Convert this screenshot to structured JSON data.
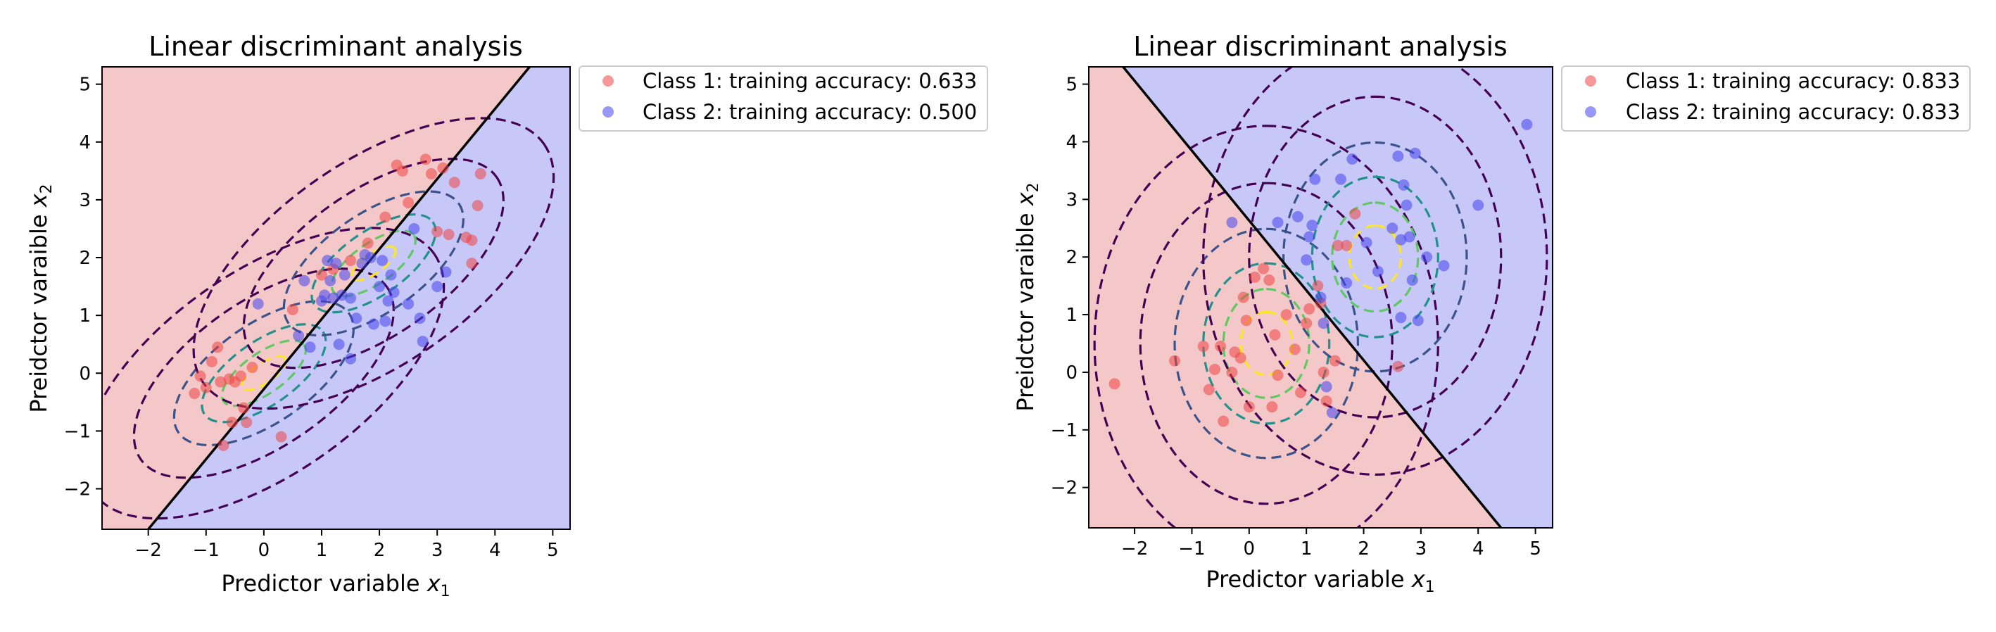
{
  "figure": {
    "background": "#ffffff"
  },
  "colors": {
    "region_class1": "#f4c8c8",
    "region_class2": "#c8c8f8",
    "point_class1": "#ee4444",
    "point_class2": "#4444ee",
    "boundary": "#000000",
    "contour_levels": [
      "#440154",
      "#3b528b",
      "#21918c",
      "#5ec962",
      "#fde725"
    ]
  },
  "chart_data": [
    {
      "type": "scatter",
      "title": "Linear discriminant analysis",
      "xlabel": "Predictor variable",
      "xlabel_symbol": "x",
      "xlabel_sub": "1",
      "ylabel": "Preidctor varaible",
      "ylabel_symbol": "x",
      "ylabel_sub": "2",
      "xlim": [
        -2.8,
        5.3
      ],
      "ylim": [
        -2.7,
        5.3
      ],
      "xticks": [
        -2,
        -1,
        0,
        1,
        2,
        3,
        4,
        5
      ],
      "yticks": [
        -2,
        -1,
        0,
        1,
        2,
        3,
        4,
        5
      ],
      "grid": false,
      "legend_position": "outside-right-top",
      "legend": [
        "Class 1: training accuracy: 0.633",
        "Class 2: training accuracy: 0.500"
      ],
      "decision_boundary": {
        "x": [
          -2.0,
          4.6
        ],
        "y": [
          -2.7,
          5.3
        ]
      },
      "contours": {
        "centers": [
          [
            0.0,
            0.0
          ],
          [
            1.9,
            1.9
          ]
        ],
        "axis_direction_deg": 35,
        "semi_axes": [
          [
            0.45,
            0.17
          ],
          [
            0.85,
            0.35
          ],
          [
            1.25,
            0.55
          ],
          [
            1.8,
            0.85
          ],
          [
            2.6,
            1.25
          ],
          [
            3.6,
            1.75
          ]
        ]
      },
      "series": [
        {
          "name": "Class 1: training accuracy: 0.633",
          "points": [
            [
              -1.2,
              -0.35
            ],
            [
              -1.1,
              -0.05
            ],
            [
              -1.0,
              -0.25
            ],
            [
              -0.9,
              0.2
            ],
            [
              -0.8,
              0.45
            ],
            [
              -0.75,
              -0.15
            ],
            [
              -0.6,
              -0.1
            ],
            [
              -0.55,
              -0.85
            ],
            [
              -0.5,
              -0.15
            ],
            [
              -0.4,
              -0.05
            ],
            [
              -0.35,
              -0.6
            ],
            [
              -0.3,
              -0.85
            ],
            [
              -0.7,
              -1.25
            ],
            [
              -0.2,
              0.1
            ],
            [
              0.3,
              -1.1
            ],
            [
              0.5,
              1.1
            ],
            [
              1.0,
              1.7
            ],
            [
              1.2,
              1.8
            ],
            [
              1.5,
              1.95
            ],
            [
              1.8,
              2.25
            ],
            [
              2.1,
              2.7
            ],
            [
              2.3,
              3.6
            ],
            [
              2.4,
              3.5
            ],
            [
              2.5,
              2.95
            ],
            [
              2.8,
              3.7
            ],
            [
              2.9,
              3.45
            ],
            [
              3.1,
              3.55
            ],
            [
              3.2,
              2.4
            ],
            [
              3.3,
              3.3
            ],
            [
              3.0,
              2.45
            ],
            [
              3.5,
              2.35
            ],
            [
              3.6,
              2.3
            ],
            [
              3.7,
              2.9
            ],
            [
              3.75,
              3.45
            ],
            [
              3.6,
              1.9
            ]
          ]
        },
        {
          "name": "Class 2: training accuracy: 0.500",
          "points": [
            [
              -0.1,
              1.2
            ],
            [
              0.6,
              0.65
            ],
            [
              0.7,
              1.6
            ],
            [
              0.8,
              0.45
            ],
            [
              1.0,
              1.25
            ],
            [
              1.05,
              1.35
            ],
            [
              1.1,
              1.95
            ],
            [
              1.2,
              1.3
            ],
            [
              1.25,
              1.9
            ],
            [
              1.3,
              0.5
            ],
            [
              1.35,
              1.35
            ],
            [
              1.4,
              1.7
            ],
            [
              1.5,
              0.25
            ],
            [
              1.6,
              0.95
            ],
            [
              1.7,
              1.9
            ],
            [
              1.75,
              2.05
            ],
            [
              1.85,
              2.0
            ],
            [
              1.9,
              0.85
            ],
            [
              2.0,
              1.5
            ],
            [
              2.05,
              1.95
            ],
            [
              2.1,
              0.9
            ],
            [
              2.15,
              1.25
            ],
            [
              2.2,
              1.7
            ],
            [
              2.25,
              1.4
            ],
            [
              2.6,
              2.5
            ],
            [
              2.7,
              0.95
            ],
            [
              2.75,
              0.55
            ],
            [
              3.0,
              1.5
            ],
            [
              3.15,
              1.75
            ],
            [
              1.5,
              1.3
            ],
            [
              1.15,
              1.6
            ],
            [
              2.5,
              1.2
            ]
          ]
        }
      ]
    },
    {
      "type": "scatter",
      "title": "Linear discriminant analysis",
      "xlabel": "Predictor variable",
      "xlabel_symbol": "x",
      "xlabel_sub": "1",
      "ylabel": "Preidctor varaible",
      "ylabel_symbol": "x",
      "ylabel_sub": "2",
      "xlim": [
        -2.8,
        5.3
      ],
      "ylim": [
        -2.7,
        5.3
      ],
      "xticks": [
        -2,
        -1,
        0,
        1,
        2,
        3,
        4,
        5
      ],
      "yticks": [
        -2,
        -1,
        0,
        1,
        2,
        3,
        4,
        5
      ],
      "grid": false,
      "legend_position": "outside-right-top",
      "legend": [
        "Class 1: training accuracy: 0.833",
        "Class 2: training accuracy: 0.833"
      ],
      "decision_boundary": {
        "x": [
          -2.2,
          4.4
        ],
        "y": [
          5.3,
          -2.7
        ]
      },
      "contours": {
        "centers": [
          [
            0.3,
            0.5
          ],
          [
            2.2,
            2.0
          ]
        ],
        "axis_direction_deg": 90,
        "semi_axes": [
          [
            0.55,
            0.45
          ],
          [
            0.95,
            0.75
          ],
          [
            1.4,
            1.1
          ],
          [
            2.0,
            1.6
          ],
          [
            2.8,
            2.2
          ],
          [
            3.8,
            3.0
          ]
        ]
      },
      "series": [
        {
          "name": "Class 1: training accuracy: 0.833",
          "points": [
            [
              -2.35,
              -0.2
            ],
            [
              -1.3,
              0.2
            ],
            [
              -0.8,
              0.45
            ],
            [
              -0.7,
              -0.3
            ],
            [
              -0.6,
              0.05
            ],
            [
              -0.5,
              0.45
            ],
            [
              -0.45,
              -0.85
            ],
            [
              -0.3,
              0.0
            ],
            [
              -0.25,
              0.35
            ],
            [
              -0.15,
              0.25
            ],
            [
              -0.1,
              1.3
            ],
            [
              -0.05,
              0.9
            ],
            [
              0.0,
              -0.6
            ],
            [
              0.1,
              1.65
            ],
            [
              0.25,
              1.8
            ],
            [
              0.35,
              1.6
            ],
            [
              0.4,
              -0.6
            ],
            [
              0.45,
              0.65
            ],
            [
              0.5,
              -0.05
            ],
            [
              0.65,
              1.0
            ],
            [
              0.8,
              0.4
            ],
            [
              0.9,
              -0.35
            ],
            [
              1.0,
              0.85
            ],
            [
              1.05,
              1.1
            ],
            [
              1.2,
              1.5
            ],
            [
              1.25,
              1.2
            ],
            [
              1.3,
              0.0
            ],
            [
              1.35,
              -0.5
            ],
            [
              1.5,
              0.2
            ],
            [
              1.55,
              2.2
            ],
            [
              1.7,
              2.2
            ],
            [
              1.85,
              2.75
            ],
            [
              2.6,
              0.1
            ]
          ]
        },
        {
          "name": "Class 2: training accuracy: 0.833",
          "points": [
            [
              -0.3,
              2.6
            ],
            [
              0.5,
              2.6
            ],
            [
              0.85,
              2.7
            ],
            [
              1.0,
              1.95
            ],
            [
              1.05,
              2.35
            ],
            [
              1.1,
              2.55
            ],
            [
              1.15,
              3.35
            ],
            [
              1.25,
              1.3
            ],
            [
              1.3,
              0.85
            ],
            [
              1.35,
              -0.25
            ],
            [
              1.45,
              -0.7
            ],
            [
              1.6,
              3.35
            ],
            [
              1.7,
              1.55
            ],
            [
              1.8,
              3.7
            ],
            [
              2.05,
              2.25
            ],
            [
              2.25,
              1.75
            ],
            [
              2.5,
              2.5
            ],
            [
              2.6,
              3.75
            ],
            [
              2.65,
              2.3
            ],
            [
              2.7,
              3.25
            ],
            [
              2.75,
              2.9
            ],
            [
              2.8,
              2.35
            ],
            [
              2.85,
              1.6
            ],
            [
              2.9,
              3.8
            ],
            [
              2.95,
              0.9
            ],
            [
              3.1,
              2.0
            ],
            [
              3.4,
              1.85
            ],
            [
              4.0,
              2.9
            ],
            [
              4.85,
              4.3
            ],
            [
              2.65,
              0.95
            ]
          ]
        }
      ]
    }
  ]
}
